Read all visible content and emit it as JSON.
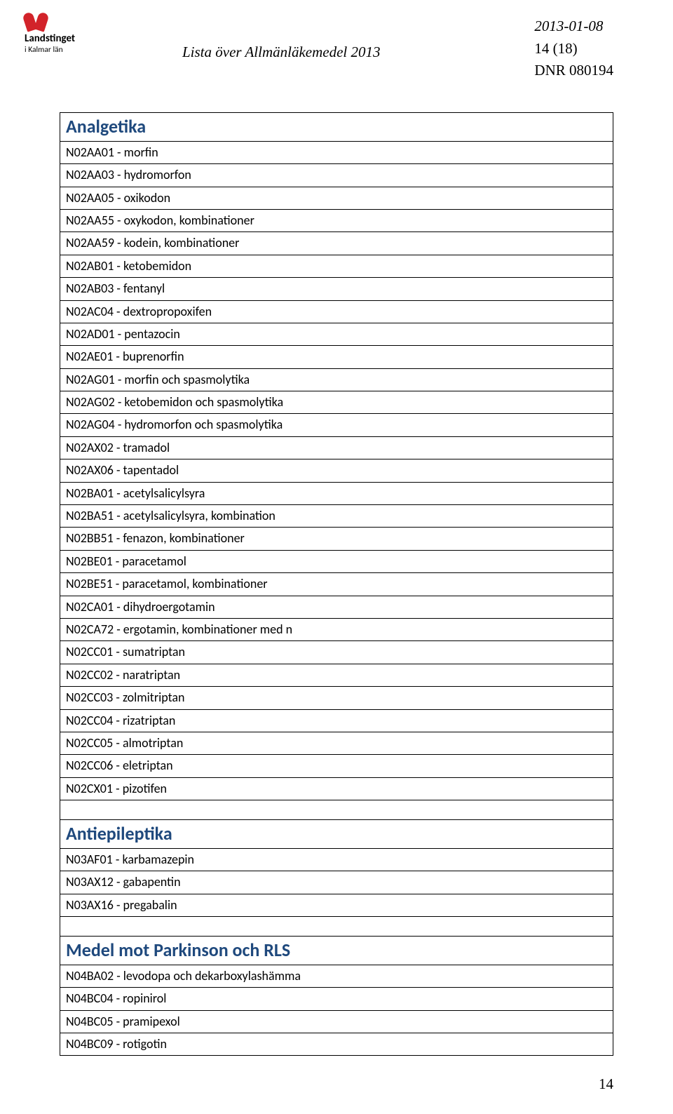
{
  "header": {
    "logo_line1": "Landstinget",
    "logo_line2": "i Kalmar län",
    "doc_title": "Lista över Allmänläkemedel 2013",
    "date": "2013-01-08",
    "page_info": "14 (18)",
    "dnr": "DNR 080194"
  },
  "sections": [
    {
      "title": "Analgetika",
      "rows": [
        "N02AA01 - morfin",
        "N02AA03 - hydromorfon",
        "N02AA05 - oxikodon",
        "N02AA55 - oxykodon, kombinationer",
        "N02AA59 - kodein, kombinationer",
        "N02AB01 - ketobemidon",
        "N02AB03 - fentanyl",
        "N02AC04 - dextropropoxifen",
        "N02AD01 - pentazocin",
        "N02AE01 - buprenorfin",
        "N02AG01 - morfin och spasmolytika",
        "N02AG02 - ketobemidon och spasmolytika",
        "N02AG04 - hydromorfon och spasmolytika",
        "N02AX02 - tramadol",
        "N02AX06 - tapentadol",
        "N02BA01 - acetylsalicylsyra",
        "N02BA51 - acetylsalicylsyra, kombination",
        "N02BB51 - fenazon, kombinationer",
        "N02BE01 - paracetamol",
        "N02BE51 - paracetamol, kombinationer",
        "N02CA01 - dihydroergotamin",
        "N02CA72 - ergotamin, kombinationer med n",
        "N02CC01 - sumatriptan",
        "N02CC02 - naratriptan",
        "N02CC03 - zolmitriptan",
        "N02CC04 - rizatriptan",
        "N02CC05 - almotriptan",
        "N02CC06 - eletriptan",
        "N02CX01 - pizotifen"
      ]
    },
    {
      "title": "Antiepileptika",
      "rows": [
        "N03AF01 - karbamazepin",
        "N03AX12 - gabapentin",
        "N03AX16 - pregabalin"
      ]
    },
    {
      "title": "Medel mot Parkinson och RLS",
      "rows": [
        "N04BA02 - levodopa och dekarboxylashämma",
        "N04BC04 - ropinirol",
        "N04BC05 - pramipexol",
        "N04BC09 - rotigotin"
      ]
    }
  ],
  "page_number": "14"
}
